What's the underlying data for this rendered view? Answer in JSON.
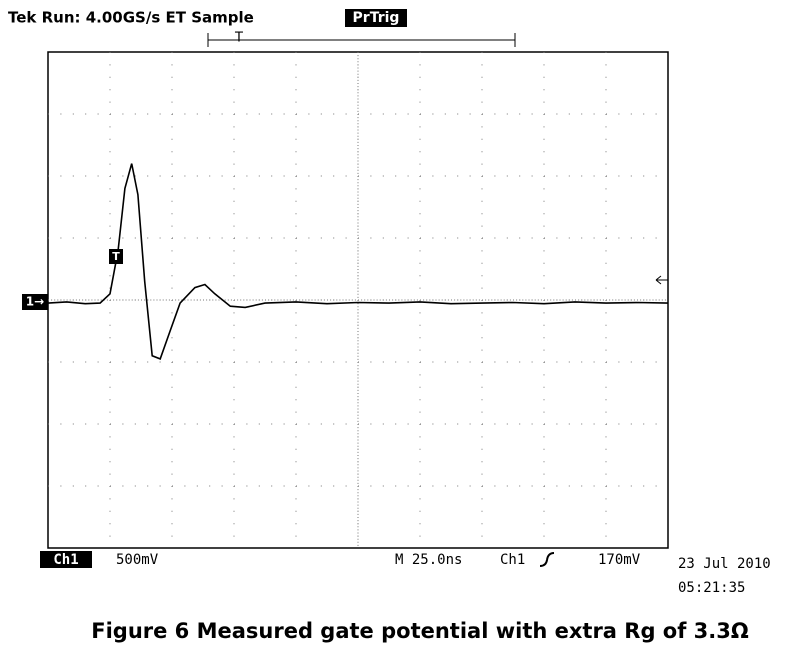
{
  "header": {
    "status": "Tek Run: 4.00GS/s ET Sample",
    "badge": "PrTrig",
    "trigger_marker": "T"
  },
  "channel_marker": "1→",
  "trace_marker": "T",
  "footer": {
    "channel": "Ch1",
    "scale": "500mV",
    "timebase": "M 25.0ns",
    "trigger_source": "Ch1",
    "trigger_level": "170mV",
    "date": "23 Jul 2010",
    "time": "05:21:35"
  },
  "caption": "Figure 6 Measured gate potential with extra Rg of 3.3Ω",
  "chart_data": {
    "type": "line",
    "xlim": [
      0,
      10
    ],
    "ylim": [
      -4,
      4
    ],
    "grid": true,
    "color": "#000000",
    "x": [
      0,
      0.3,
      0.6,
      0.84,
      1.0,
      1.13,
      1.24,
      1.35,
      1.45,
      1.56,
      1.68,
      1.81,
      1.97,
      2.13,
      2.37,
      2.53,
      2.69,
      2.94,
      3.18,
      3.5,
      4.0,
      4.5,
      5.0,
      5.5,
      6.0,
      6.5,
      7.0,
      7.5,
      8.0,
      8.5,
      9.0,
      9.5,
      10
    ],
    "values": [
      -0.05,
      -0.03,
      -0.06,
      -0.05,
      0.1,
      0.8,
      1.8,
      2.2,
      1.7,
      0.3,
      -0.9,
      -0.95,
      -0.5,
      -0.05,
      0.2,
      0.25,
      0.1,
      -0.1,
      -0.12,
      -0.05,
      -0.03,
      -0.06,
      -0.04,
      -0.05,
      -0.03,
      -0.06,
      -0.05,
      -0.04,
      -0.06,
      -0.03,
      -0.05,
      -0.04,
      -0.05
    ]
  }
}
